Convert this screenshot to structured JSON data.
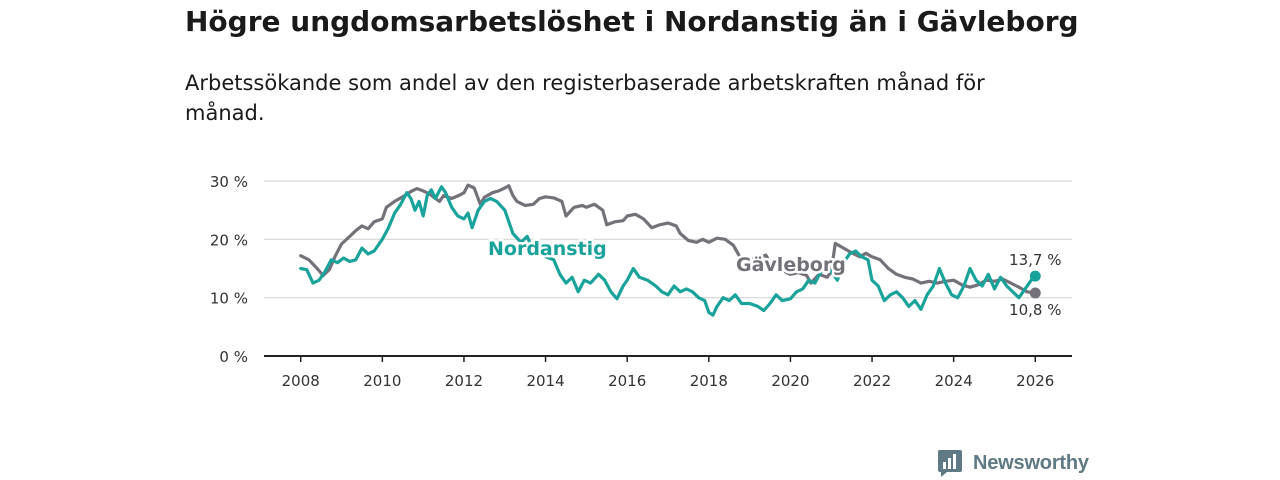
{
  "title": "Högre ungdomsarbetslöshet i Nordanstig än i Gävleborg",
  "subtitle": "Arbetssökande som andel av den registerbaserade arbetskraften månad för månad.",
  "brand": {
    "name": "Newsworthy",
    "color": "#5f7a84",
    "icon": "newsworthy-logo-icon"
  },
  "colors": {
    "nordanstig": "#1aa39a",
    "gavleborg": "#75717a",
    "grid": "#d6d6d6",
    "axis": "#222222"
  },
  "chart_data": {
    "type": "line",
    "title": "Högre ungdomsarbetslöshet i Nordanstig än i Gävleborg",
    "xlabel": "",
    "ylabel": "",
    "xlim": [
      2007.1,
      2026.9
    ],
    "ylim": [
      0,
      30
    ],
    "grid": true,
    "x_ticks": [
      2008,
      2010,
      2012,
      2014,
      2016,
      2018,
      2020,
      2022,
      2024,
      2026
    ],
    "x_tick_labels": [
      "2008",
      "2010",
      "2012",
      "2014",
      "2016",
      "2018",
      "2020",
      "2022",
      "2024",
      "2026"
    ],
    "y_ticks": [
      0,
      10,
      20,
      30
    ],
    "y_tick_labels": [
      "0 %",
      "10 %",
      "20 %",
      "30 %"
    ],
    "series": [
      {
        "name": "Gävleborg",
        "color": "#75717a",
        "label": "Gävleborg",
        "end_label": "10,8 %",
        "points": [
          [
            2008.0,
            17.2
          ],
          [
            2008.2,
            16.5
          ],
          [
            2008.4,
            15.0
          ],
          [
            2008.55,
            13.8
          ],
          [
            2008.7,
            14.8
          ],
          [
            2008.85,
            17.2
          ],
          [
            2009.0,
            19.2
          ],
          [
            2009.2,
            20.5
          ],
          [
            2009.35,
            21.5
          ],
          [
            2009.5,
            22.3
          ],
          [
            2009.65,
            21.8
          ],
          [
            2009.8,
            23.0
          ],
          [
            2010.0,
            23.5
          ],
          [
            2010.1,
            25.5
          ],
          [
            2010.3,
            26.5
          ],
          [
            2010.5,
            27.3
          ],
          [
            2010.7,
            28.2
          ],
          [
            2010.85,
            28.7
          ],
          [
            2011.0,
            28.3
          ],
          [
            2011.15,
            27.8
          ],
          [
            2011.3,
            27.0
          ],
          [
            2011.4,
            26.5
          ],
          [
            2011.5,
            27.5
          ],
          [
            2011.7,
            27.0
          ],
          [
            2011.9,
            27.6
          ],
          [
            2012.0,
            28.0
          ],
          [
            2012.1,
            29.3
          ],
          [
            2012.25,
            28.8
          ],
          [
            2012.4,
            26.0
          ],
          [
            2012.5,
            27.2
          ],
          [
            2012.7,
            28.0
          ],
          [
            2012.85,
            28.3
          ],
          [
            2013.0,
            28.8
          ],
          [
            2013.1,
            29.2
          ],
          [
            2013.2,
            27.5
          ],
          [
            2013.3,
            26.5
          ],
          [
            2013.5,
            25.8
          ],
          [
            2013.7,
            26.0
          ],
          [
            2013.85,
            27.0
          ],
          [
            2014.0,
            27.3
          ],
          [
            2014.2,
            27.1
          ],
          [
            2014.4,
            26.5
          ],
          [
            2014.5,
            24.0
          ],
          [
            2014.7,
            25.5
          ],
          [
            2014.9,
            25.8
          ],
          [
            2015.0,
            25.5
          ],
          [
            2015.2,
            26.0
          ],
          [
            2015.4,
            25.0
          ],
          [
            2015.5,
            22.5
          ],
          [
            2015.7,
            23.0
          ],
          [
            2015.9,
            23.2
          ],
          [
            2016.0,
            24.0
          ],
          [
            2016.2,
            24.3
          ],
          [
            2016.4,
            23.5
          ],
          [
            2016.6,
            22.0
          ],
          [
            2016.8,
            22.5
          ],
          [
            2017.0,
            22.8
          ],
          [
            2017.2,
            22.3
          ],
          [
            2017.3,
            21.0
          ],
          [
            2017.5,
            19.8
          ],
          [
            2017.7,
            19.5
          ],
          [
            2017.85,
            20.0
          ],
          [
            2018.0,
            19.5
          ],
          [
            2018.2,
            20.2
          ],
          [
            2018.4,
            20.0
          ],
          [
            2018.6,
            19.0
          ],
          [
            2018.8,
            16.5
          ],
          [
            2019.0,
            16.6
          ],
          [
            2019.2,
            16.8
          ],
          [
            2019.4,
            17.3
          ],
          [
            2019.5,
            16.0
          ],
          [
            2019.7,
            15.5
          ],
          [
            2019.9,
            14.3
          ],
          [
            2020.0,
            14.0
          ],
          [
            2020.2,
            14.3
          ],
          [
            2020.4,
            13.8
          ],
          [
            2020.5,
            12.5
          ],
          [
            2020.7,
            14.0
          ],
          [
            2020.9,
            13.5
          ],
          [
            2021.0,
            14.5
          ],
          [
            2021.1,
            19.3
          ],
          [
            2021.3,
            18.5
          ],
          [
            2021.5,
            17.7
          ],
          [
            2021.7,
            17.0
          ],
          [
            2021.85,
            17.6
          ],
          [
            2022.0,
            17.0
          ],
          [
            2022.2,
            16.5
          ],
          [
            2022.4,
            15.0
          ],
          [
            2022.6,
            14.0
          ],
          [
            2022.8,
            13.5
          ],
          [
            2023.0,
            13.2
          ],
          [
            2023.2,
            12.5
          ],
          [
            2023.4,
            12.8
          ],
          [
            2023.6,
            12.5
          ],
          [
            2023.8,
            12.8
          ],
          [
            2024.0,
            13.0
          ],
          [
            2024.2,
            12.2
          ],
          [
            2024.4,
            11.8
          ],
          [
            2024.6,
            12.2
          ],
          [
            2024.8,
            13.0
          ],
          [
            2025.0,
            12.8
          ],
          [
            2025.2,
            13.2
          ],
          [
            2025.4,
            12.5
          ],
          [
            2025.6,
            11.8
          ],
          [
            2025.8,
            11.0
          ],
          [
            2026.0,
            10.8
          ]
        ]
      },
      {
        "name": "Nordanstig",
        "color": "#1aa39a",
        "label": "Nordanstig",
        "end_label": "13,7 %",
        "points": [
          [
            2008.0,
            15.0
          ],
          [
            2008.15,
            14.8
          ],
          [
            2008.3,
            12.5
          ],
          [
            2008.45,
            13.0
          ],
          [
            2008.6,
            14.5
          ],
          [
            2008.75,
            16.5
          ],
          [
            2008.9,
            16.0
          ],
          [
            2009.05,
            16.8
          ],
          [
            2009.2,
            16.2
          ],
          [
            2009.35,
            16.5
          ],
          [
            2009.5,
            18.5
          ],
          [
            2009.65,
            17.5
          ],
          [
            2009.8,
            18.0
          ],
          [
            2010.0,
            20.0
          ],
          [
            2010.15,
            22.0
          ],
          [
            2010.3,
            24.5
          ],
          [
            2010.45,
            26.0
          ],
          [
            2010.6,
            28.0
          ],
          [
            2010.7,
            27.0
          ],
          [
            2010.8,
            25.0
          ],
          [
            2010.9,
            26.5
          ],
          [
            2011.0,
            24.0
          ],
          [
            2011.1,
            27.5
          ],
          [
            2011.2,
            28.5
          ],
          [
            2011.3,
            27.0
          ],
          [
            2011.45,
            29.0
          ],
          [
            2011.55,
            28.0
          ],
          [
            2011.7,
            25.5
          ],
          [
            2011.85,
            24.0
          ],
          [
            2012.0,
            23.5
          ],
          [
            2012.1,
            24.5
          ],
          [
            2012.2,
            22.0
          ],
          [
            2012.35,
            25.0
          ],
          [
            2012.5,
            26.5
          ],
          [
            2012.65,
            27.0
          ],
          [
            2012.8,
            26.5
          ],
          [
            2013.0,
            25.0
          ],
          [
            2013.2,
            21.0
          ],
          [
            2013.4,
            19.5
          ],
          [
            2013.55,
            20.5
          ],
          [
            2013.7,
            18.0
          ],
          [
            2013.85,
            17.5
          ],
          [
            2014.0,
            17.0
          ],
          [
            2014.2,
            16.5
          ],
          [
            2014.35,
            14.0
          ],
          [
            2014.5,
            12.5
          ],
          [
            2014.65,
            13.5
          ],
          [
            2014.8,
            11.0
          ],
          [
            2014.95,
            13.0
          ],
          [
            2015.1,
            12.5
          ],
          [
            2015.3,
            14.0
          ],
          [
            2015.45,
            13.0
          ],
          [
            2015.6,
            11.0
          ],
          [
            2015.75,
            9.8
          ],
          [
            2015.9,
            12.0
          ],
          [
            2016.0,
            13.0
          ],
          [
            2016.15,
            15.0
          ],
          [
            2016.3,
            13.5
          ],
          [
            2016.5,
            13.0
          ],
          [
            2016.7,
            12.0
          ],
          [
            2016.85,
            11.0
          ],
          [
            2017.0,
            10.5
          ],
          [
            2017.15,
            12.0
          ],
          [
            2017.3,
            11.0
          ],
          [
            2017.45,
            11.5
          ],
          [
            2017.6,
            11.0
          ],
          [
            2017.75,
            10.0
          ],
          [
            2017.9,
            9.5
          ],
          [
            2018.0,
            7.5
          ],
          [
            2018.1,
            7.0
          ],
          [
            2018.2,
            8.5
          ],
          [
            2018.35,
            10.0
          ],
          [
            2018.5,
            9.5
          ],
          [
            2018.65,
            10.5
          ],
          [
            2018.8,
            9.0
          ],
          [
            2019.0,
            9.0
          ],
          [
            2019.2,
            8.5
          ],
          [
            2019.35,
            7.8
          ],
          [
            2019.5,
            9.0
          ],
          [
            2019.65,
            10.5
          ],
          [
            2019.8,
            9.5
          ],
          [
            2020.0,
            9.8
          ],
          [
            2020.15,
            11.0
          ],
          [
            2020.3,
            11.5
          ],
          [
            2020.45,
            13.0
          ],
          [
            2020.6,
            12.5
          ],
          [
            2020.75,
            14.5
          ],
          [
            2020.9,
            15.0
          ],
          [
            2021.0,
            14.5
          ],
          [
            2021.15,
            13.0
          ],
          [
            2021.3,
            16.0
          ],
          [
            2021.45,
            17.5
          ],
          [
            2021.6,
            18.0
          ],
          [
            2021.75,
            17.0
          ],
          [
            2021.9,
            16.5
          ],
          [
            2022.0,
            13.0
          ],
          [
            2022.15,
            12.0
          ],
          [
            2022.3,
            9.5
          ],
          [
            2022.45,
            10.5
          ],
          [
            2022.6,
            11.0
          ],
          [
            2022.75,
            10.0
          ],
          [
            2022.9,
            8.5
          ],
          [
            2023.05,
            9.5
          ],
          [
            2023.2,
            8.0
          ],
          [
            2023.35,
            10.5
          ],
          [
            2023.5,
            12.0
          ],
          [
            2023.65,
            15.0
          ],
          [
            2023.8,
            12.5
          ],
          [
            2023.95,
            10.5
          ],
          [
            2024.1,
            10.0
          ],
          [
            2024.25,
            12.0
          ],
          [
            2024.4,
            15.0
          ],
          [
            2024.55,
            13.0
          ],
          [
            2024.7,
            12.0
          ],
          [
            2024.85,
            14.0
          ],
          [
            2025.0,
            11.5
          ],
          [
            2025.15,
            13.5
          ],
          [
            2025.3,
            12.0
          ],
          [
            2025.45,
            11.0
          ],
          [
            2025.6,
            10.0
          ],
          [
            2025.75,
            11.5
          ],
          [
            2025.9,
            13.0
          ],
          [
            2026.0,
            13.7
          ]
        ]
      }
    ],
    "annotations": [
      {
        "text": "Nordanstig",
        "series": "Nordanstig"
      },
      {
        "text": "Gävleborg",
        "series": "Gävleborg"
      }
    ]
  }
}
